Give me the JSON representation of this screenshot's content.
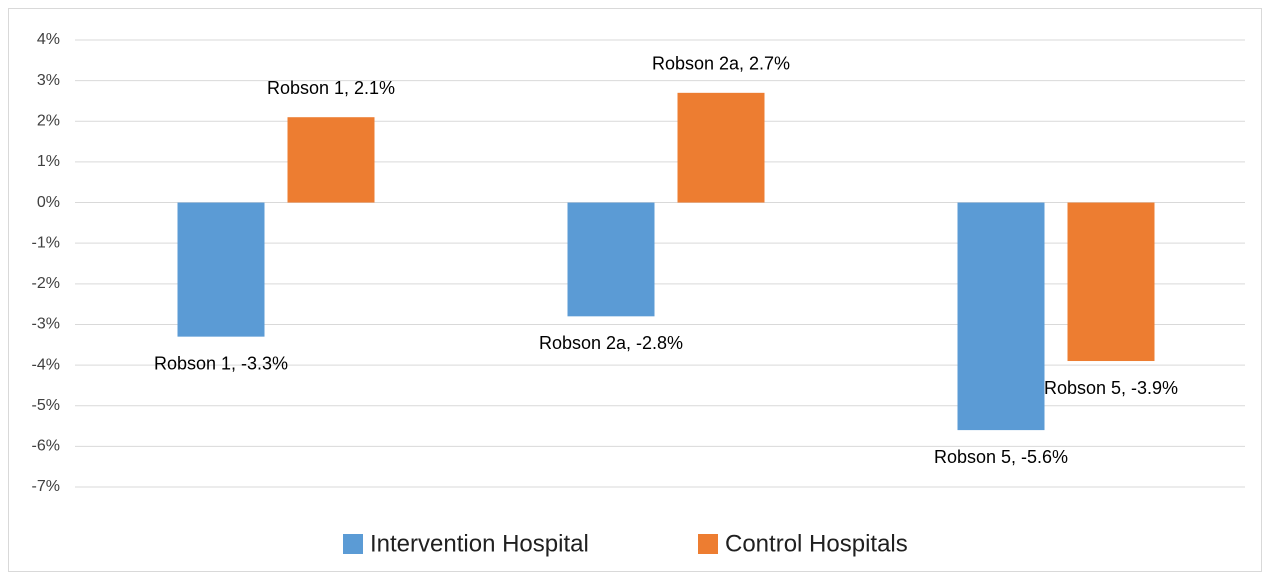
{
  "chart_data": {
    "type": "bar",
    "series": [
      {
        "name": "Intervention Hospital",
        "color": "#5b9bd5",
        "values": [
          -3.3,
          -2.8,
          -5.6
        ],
        "value_labels": [
          "Robson 1, -3.3%",
          "Robson 2a, -2.8%",
          "Robson 5, -5.6%"
        ]
      },
      {
        "name": "Control Hospitals",
        "color": "#ed7d31",
        "values": [
          2.1,
          2.7,
          -3.9
        ],
        "value_labels": [
          "Robson 1, 2.1%",
          "Robson 2a, 2.7%",
          "Robson 5, -3.9%"
        ]
      }
    ],
    "ylim": [
      -7,
      4
    ],
    "yticks": [
      {
        "value": 4,
        "label": "4%"
      },
      {
        "value": 3,
        "label": "3%"
      },
      {
        "value": 2,
        "label": "2%"
      },
      {
        "value": 1,
        "label": "1%"
      },
      {
        "value": 0,
        "label": "0%"
      },
      {
        "value": -1,
        "label": "-1%"
      },
      {
        "value": -2,
        "label": "-2%"
      },
      {
        "value": -3,
        "label": "-3%"
      },
      {
        "value": -4,
        "label": "-4%"
      },
      {
        "value": -5,
        "label": "-5%"
      },
      {
        "value": -6,
        "label": "-6%"
      },
      {
        "value": -7,
        "label": "-7%"
      }
    ],
    "grid": true,
    "legend": "bottom"
  }
}
